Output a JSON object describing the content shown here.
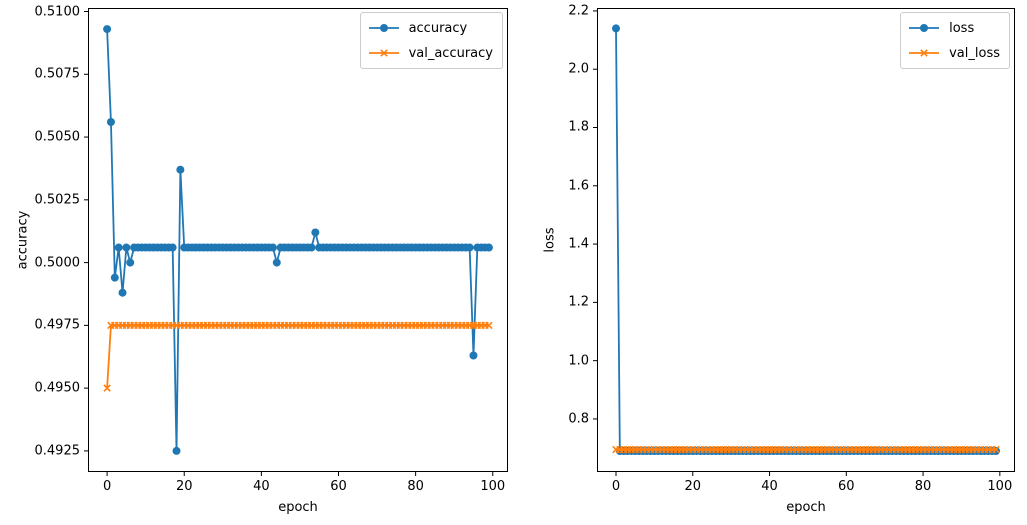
{
  "figure": {
    "background": "#ffffff"
  },
  "chart_data": [
    {
      "id": "accuracy",
      "type": "line",
      "title": "",
      "xlabel": "epoch",
      "ylabel": "accuracy",
      "grid": false,
      "legend_position": "upper right",
      "xlim": [
        -4.95,
        103.95
      ],
      "ylim": [
        0.49166,
        0.51014
      ],
      "xticks": [
        0,
        20,
        40,
        60,
        80,
        100
      ],
      "xtick_labels": [
        "0",
        "20",
        "40",
        "60",
        "80",
        "100"
      ],
      "yticks": [
        0.4925,
        0.495,
        0.4975,
        0.5,
        0.5025,
        0.505,
        0.5075,
        0.51
      ],
      "ytick_labels": [
        "0.4925",
        "0.4950",
        "0.4975",
        "0.5000",
        "0.5025",
        "0.5050",
        "0.5075",
        "0.5100"
      ],
      "n_epochs": 100,
      "series": [
        {
          "name": "accuracy",
          "color": "#1f77b4",
          "marker": "circle",
          "values": [
            0.5093,
            0.5056,
            0.4994,
            0.5006,
            0.4988,
            0.5006,
            0.5,
            0.5006,
            0.5006,
            0.5006,
            0.5006,
            0.5006,
            0.5006,
            0.5006,
            0.5006,
            0.5006,
            0.5006,
            0.5006,
            0.4925,
            0.5037,
            0.5006,
            0.5006,
            0.5006,
            0.5006,
            0.5006,
            0.5006,
            0.5006,
            0.5006,
            0.5006,
            0.5006,
            0.5006,
            0.5006,
            0.5006,
            0.5006,
            0.5006,
            0.5006,
            0.5006,
            0.5006,
            0.5006,
            0.5006,
            0.5006,
            0.5006,
            0.5006,
            0.5006,
            0.5,
            0.5006,
            0.5006,
            0.5006,
            0.5006,
            0.5006,
            0.5006,
            0.5006,
            0.5006,
            0.5006,
            0.5012,
            0.5006,
            0.5006,
            0.5006,
            0.5006,
            0.5006,
            0.5006,
            0.5006,
            0.5006,
            0.5006,
            0.5006,
            0.5006,
            0.5006,
            0.5006,
            0.5006,
            0.5006,
            0.5006,
            0.5006,
            0.5006,
            0.5006,
            0.5006,
            0.5006,
            0.5006,
            0.5006,
            0.5006,
            0.5006,
            0.5006,
            0.5006,
            0.5006,
            0.5006,
            0.5006,
            0.5006,
            0.5006,
            0.5006,
            0.5006,
            0.5006,
            0.5006,
            0.5006,
            0.5006,
            0.5006,
            0.5006,
            0.4963,
            0.5006,
            0.5006,
            0.5006,
            0.5006
          ]
        },
        {
          "name": "val_accuracy",
          "color": "#ff7f0e",
          "marker": "x",
          "values": [
            0.495,
            0.4975,
            0.4975,
            0.4975,
            0.4975,
            0.4975,
            0.4975,
            0.4975,
            0.4975,
            0.4975,
            0.4975,
            0.4975,
            0.4975,
            0.4975,
            0.4975,
            0.4975,
            0.4975,
            0.4975,
            0.4975,
            0.4975,
            0.4975,
            0.4975,
            0.4975,
            0.4975,
            0.4975,
            0.4975,
            0.4975,
            0.4975,
            0.4975,
            0.4975,
            0.4975,
            0.4975,
            0.4975,
            0.4975,
            0.4975,
            0.4975,
            0.4975,
            0.4975,
            0.4975,
            0.4975,
            0.4975,
            0.4975,
            0.4975,
            0.4975,
            0.4975,
            0.4975,
            0.4975,
            0.4975,
            0.4975,
            0.4975,
            0.4975,
            0.4975,
            0.4975,
            0.4975,
            0.4975,
            0.4975,
            0.4975,
            0.4975,
            0.4975,
            0.4975,
            0.4975,
            0.4975,
            0.4975,
            0.4975,
            0.4975,
            0.4975,
            0.4975,
            0.4975,
            0.4975,
            0.4975,
            0.4975,
            0.4975,
            0.4975,
            0.4975,
            0.4975,
            0.4975,
            0.4975,
            0.4975,
            0.4975,
            0.4975,
            0.4975,
            0.4975,
            0.4975,
            0.4975,
            0.4975,
            0.4975,
            0.4975,
            0.4975,
            0.4975,
            0.4975,
            0.4975,
            0.4975,
            0.4975,
            0.4975,
            0.4975,
            0.4975,
            0.4975,
            0.4975,
            0.4975,
            0.4975
          ]
        }
      ]
    },
    {
      "id": "loss",
      "type": "line",
      "title": "",
      "xlabel": "epoch",
      "ylabel": "loss",
      "grid": false,
      "legend_position": "upper right",
      "xlim": [
        -4.95,
        103.95
      ],
      "ylim": [
        0.618,
        2.21
      ],
      "xticks": [
        0,
        20,
        40,
        60,
        80,
        100
      ],
      "xtick_labels": [
        "0",
        "20",
        "40",
        "60",
        "80",
        "100"
      ],
      "yticks": [
        0.8,
        1.0,
        1.2,
        1.4,
        1.6,
        1.8,
        2.0,
        2.2
      ],
      "ytick_labels": [
        "0.8",
        "1.0",
        "1.2",
        "1.4",
        "1.6",
        "1.8",
        "2.0",
        "2.2"
      ],
      "n_epochs": 100,
      "series": [
        {
          "name": "loss",
          "color": "#1f77b4",
          "marker": "circle",
          "values": [
            2.14,
            0.69,
            0.69,
            0.69,
            0.69,
            0.69,
            0.69,
            0.69,
            0.69,
            0.69,
            0.69,
            0.69,
            0.69,
            0.69,
            0.69,
            0.69,
            0.69,
            0.69,
            0.69,
            0.69,
            0.69,
            0.69,
            0.69,
            0.69,
            0.69,
            0.69,
            0.69,
            0.69,
            0.69,
            0.69,
            0.69,
            0.69,
            0.69,
            0.69,
            0.69,
            0.69,
            0.69,
            0.69,
            0.69,
            0.69,
            0.69,
            0.69,
            0.69,
            0.69,
            0.69,
            0.69,
            0.69,
            0.69,
            0.69,
            0.69,
            0.69,
            0.69,
            0.69,
            0.69,
            0.69,
            0.69,
            0.69,
            0.69,
            0.69,
            0.69,
            0.69,
            0.69,
            0.69,
            0.69,
            0.69,
            0.69,
            0.69,
            0.69,
            0.69,
            0.69,
            0.69,
            0.69,
            0.69,
            0.69,
            0.69,
            0.69,
            0.69,
            0.69,
            0.69,
            0.69,
            0.69,
            0.69,
            0.69,
            0.69,
            0.69,
            0.69,
            0.69,
            0.69,
            0.69,
            0.69,
            0.69,
            0.69,
            0.69,
            0.69,
            0.69,
            0.69,
            0.69,
            0.69,
            0.69,
            0.69
          ]
        },
        {
          "name": "val_loss",
          "color": "#ff7f0e",
          "marker": "x",
          "values": [
            0.695,
            0.695,
            0.695,
            0.695,
            0.695,
            0.695,
            0.695,
            0.695,
            0.695,
            0.695,
            0.695,
            0.695,
            0.695,
            0.695,
            0.695,
            0.695,
            0.695,
            0.695,
            0.695,
            0.695,
            0.695,
            0.695,
            0.695,
            0.695,
            0.695,
            0.695,
            0.695,
            0.695,
            0.695,
            0.695,
            0.695,
            0.695,
            0.695,
            0.695,
            0.695,
            0.695,
            0.695,
            0.695,
            0.695,
            0.695,
            0.695,
            0.695,
            0.695,
            0.695,
            0.695,
            0.695,
            0.695,
            0.695,
            0.695,
            0.695,
            0.695,
            0.695,
            0.695,
            0.695,
            0.695,
            0.695,
            0.695,
            0.695,
            0.695,
            0.695,
            0.695,
            0.695,
            0.695,
            0.695,
            0.695,
            0.695,
            0.695,
            0.695,
            0.695,
            0.695,
            0.695,
            0.695,
            0.695,
            0.695,
            0.695,
            0.695,
            0.695,
            0.695,
            0.695,
            0.695,
            0.695,
            0.695,
            0.695,
            0.695,
            0.695,
            0.695,
            0.695,
            0.695,
            0.695,
            0.695,
            0.695,
            0.695,
            0.695,
            0.695,
            0.695,
            0.695,
            0.695,
            0.695,
            0.695,
            0.695
          ]
        }
      ]
    }
  ]
}
